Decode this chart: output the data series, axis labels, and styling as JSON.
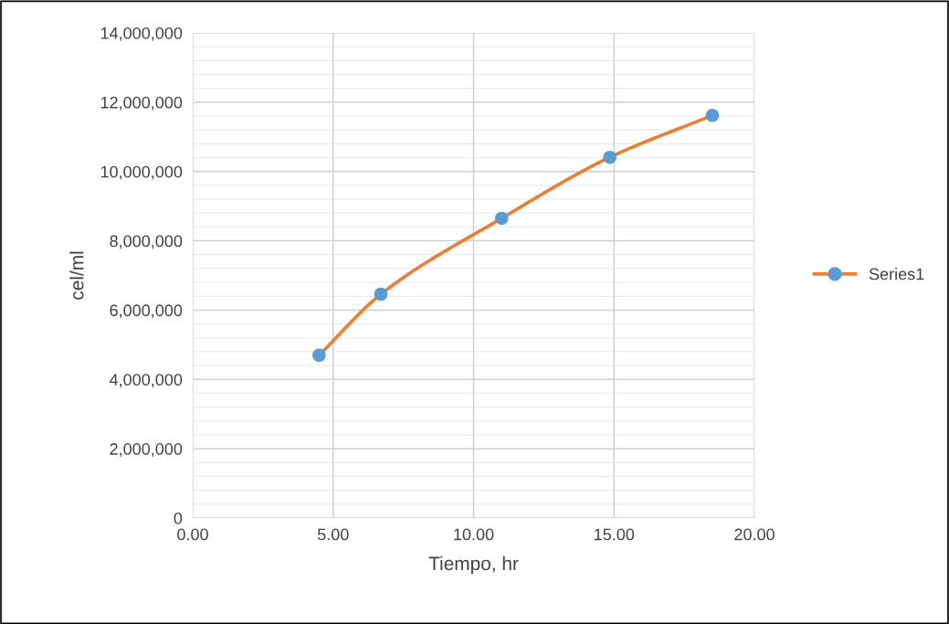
{
  "chart_data": {
    "type": "line",
    "xlabel": "Tiempo, hr",
    "ylabel": "cel/ml",
    "x": [
      4.5,
      6.7,
      11.0,
      14.85,
      18.5
    ],
    "series": [
      {
        "name": "Series1",
        "color": "#ed7d31",
        "colors": [
          "#5b9bd5",
          "#5b9bd5",
          "#5b9bd5",
          "#5b9bd5",
          "#5b9bd5"
        ],
        "values": [
          4700000,
          6460000,
          8650000,
          10410000,
          11620000
        ]
      }
    ],
    "xlim": [
      0,
      20
    ],
    "xticks": [
      {
        "value": 0,
        "label": "0.00"
      },
      {
        "value": 5,
        "label": "5.00"
      },
      {
        "value": 10,
        "label": "10.00"
      },
      {
        "value": 15,
        "label": "15.00"
      },
      {
        "value": 20,
        "label": "20.00"
      }
    ],
    "ylim": [
      0,
      14000000
    ],
    "yticks": [
      0,
      {
        "value": 2000000,
        "label": "2,000,000"
      },
      {
        "value": 4000000,
        "label": "4,000,000"
      },
      {
        "value": 6000000,
        "label": "6,000,000"
      },
      {
        "value": 8000000,
        "label": "8,000,000"
      },
      {
        "value": 10000000,
        "label": "10,000,000"
      },
      {
        "value": 12000000,
        "label": "12,000,000"
      },
      {
        "value": 14000000,
        "label": "14,000,000"
      }
    ],
    "grid": true,
    "legend": "right",
    "marker": "circle",
    "line_style": "solid"
  }
}
